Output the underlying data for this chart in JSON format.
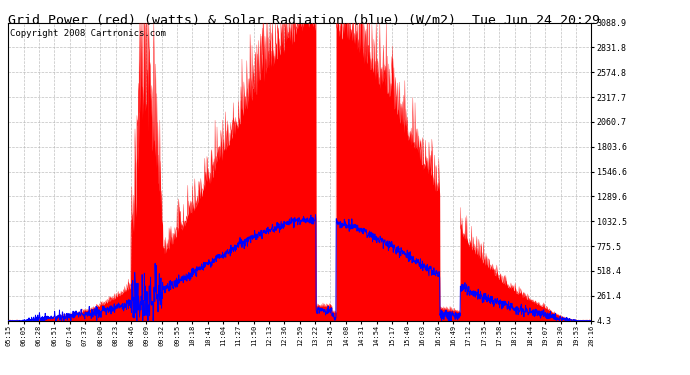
{
  "title": "Grid Power (red) (watts) & Solar Radiation (blue) (W/m2)  Tue Jun 24 20:29",
  "copyright": "Copyright 2008 Cartronics.com",
  "yticks": [
    4.3,
    261.4,
    518.4,
    775.5,
    1032.5,
    1289.6,
    1546.6,
    1803.6,
    2060.7,
    2317.7,
    2574.8,
    2831.8,
    3088.9
  ],
  "ymin": 4.3,
  "ymax": 3088.9,
  "xtick_labels": [
    "05:15",
    "06:05",
    "06:28",
    "06:51",
    "07:14",
    "07:37",
    "08:00",
    "08:23",
    "08:46",
    "09:09",
    "09:32",
    "09:55",
    "10:18",
    "10:41",
    "11:04",
    "11:27",
    "11:50",
    "12:13",
    "12:36",
    "12:59",
    "13:22",
    "13:45",
    "14:08",
    "14:31",
    "14:54",
    "15:17",
    "15:40",
    "16:03",
    "16:26",
    "16:49",
    "17:12",
    "17:35",
    "17:58",
    "18:21",
    "18:44",
    "19:07",
    "19:30",
    "19:53",
    "20:16"
  ],
  "background_color": "#ffffff",
  "plot_bg_color": "#ffffff",
  "red_color": "#ff0000",
  "blue_color": "#0000ff",
  "grid_color": "#b0b0b0",
  "title_fontsize": 9.5,
  "copyright_fontsize": 6.5,
  "peak_grid": 3000,
  "peak_solar": 1050
}
